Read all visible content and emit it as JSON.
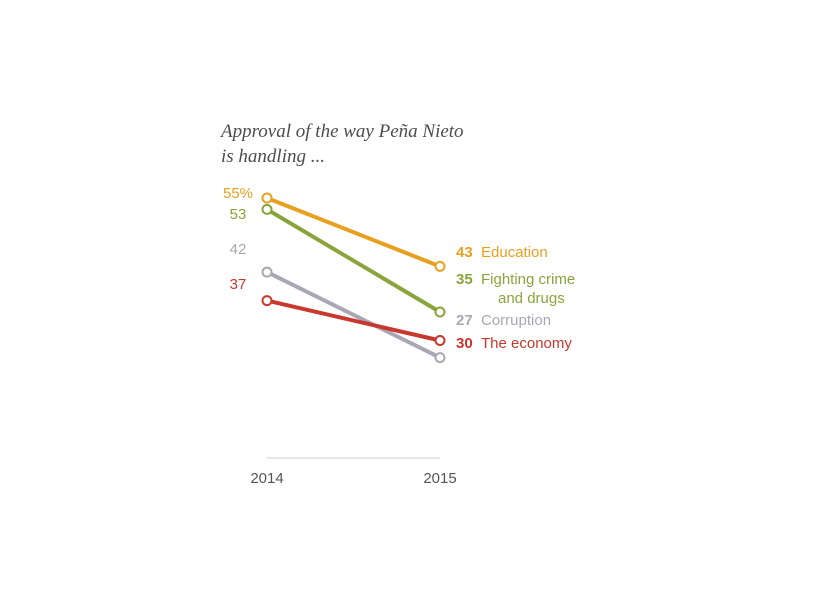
{
  "title": "Approval of the way Peña Nieto is handling ...",
  "title_lines": [
    "Approval of the way Peña Nieto",
    "is handling ..."
  ],
  "chart_data": {
    "type": "line",
    "title": "Approval of the way Peña Nieto is handling ...",
    "x": [
      "2014",
      "2015"
    ],
    "xlabel": "",
    "ylabel": "",
    "ylim": [
      20,
      60
    ],
    "grid": false,
    "legend": "direct labels at line ends",
    "series": [
      {
        "name": "Education",
        "values": [
          55,
          43
        ],
        "start_label": "55%",
        "end_label": "43",
        "name_lines": [
          "Education"
        ],
        "color": "#e8a020"
      },
      {
        "name": "Fighting crime and drugs",
        "values": [
          53,
          35
        ],
        "start_label": "53",
        "end_label": "35",
        "name_lines": [
          "Fighting crime",
          "and drugs"
        ],
        "color": "#8aa43c"
      },
      {
        "name": "Corruption",
        "values": [
          42,
          27
        ],
        "start_label": "42",
        "end_label": "27",
        "name_lines": [
          "Corruption"
        ],
        "color": "#a9a6b5"
      },
      {
        "name": "The economy",
        "values": [
          37,
          30
        ],
        "start_label": "37",
        "end_label": "30",
        "name_lines": [
          "The economy"
        ],
        "color": "#c8382c"
      }
    ],
    "draw_order": [
      0,
      1,
      2,
      3
    ]
  },
  "colors": {
    "axis": "#cccccc",
    "tick_text": "#555555",
    "title_text": "#4d4d4d"
  }
}
